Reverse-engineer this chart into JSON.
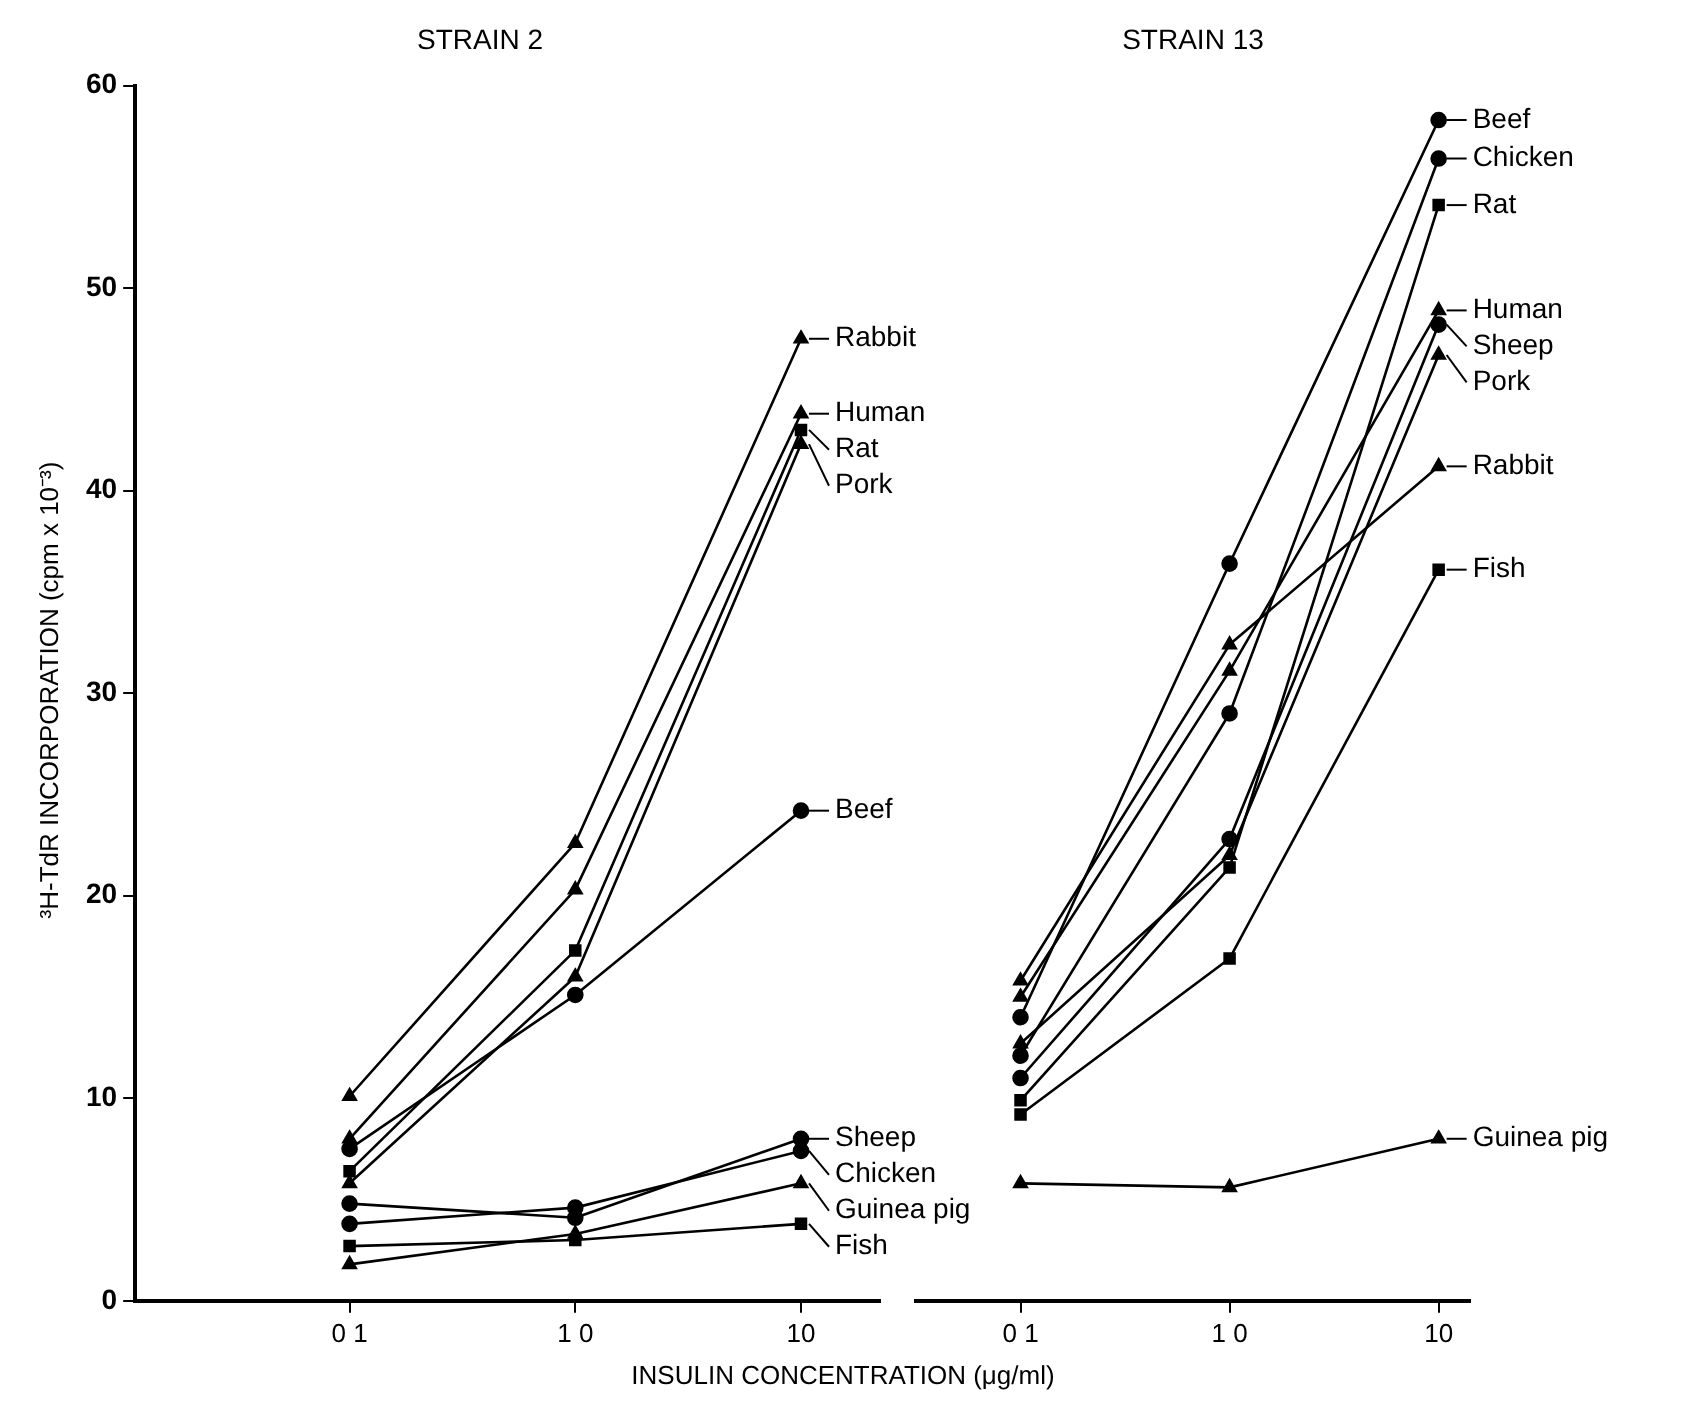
{
  "chart_data": [
    {
      "type": "line",
      "title": "STRAIN 2",
      "xlabel": "INSULIN CONCENTRATION (μg/ml)",
      "ylabel": "³H-TdR INCORPORATION (cpm x 10⁻³)",
      "categories": [
        "0 1",
        "1 0",
        "10"
      ],
      "ylim": [
        0,
        60
      ],
      "yticks": [
        0,
        10,
        20,
        30,
        40,
        50,
        60
      ],
      "grid": false,
      "legend": "right",
      "series": [
        {
          "name": "Rabbit",
          "color": "#000000",
          "marker": "triangle",
          "values": [
            10.1,
            22.6,
            47.5
          ]
        },
        {
          "name": "Human",
          "color": "#000000",
          "marker": "triangle",
          "values": [
            8.0,
            20.3,
            43.8
          ]
        },
        {
          "name": "Rat",
          "color": "#000000",
          "marker": "square",
          "values": [
            6.4,
            17.3,
            43.0
          ]
        },
        {
          "name": "Pork",
          "color": "#000000",
          "marker": "triangle",
          "values": [
            5.8,
            16.0,
            42.3
          ]
        },
        {
          "name": "Beef",
          "color": "#000000",
          "marker": "circle",
          "values": [
            7.5,
            15.1,
            24.2
          ]
        },
        {
          "name": "Sheep",
          "color": "#000000",
          "marker": "circle",
          "values": [
            4.8,
            4.1,
            8.0
          ]
        },
        {
          "name": "Chicken",
          "color": "#000000",
          "marker": "circle",
          "values": [
            3.8,
            4.6,
            7.4
          ]
        },
        {
          "name": "Guinea pig",
          "color": "#000000",
          "marker": "triangle",
          "values": [
            1.8,
            3.3,
            5.8
          ]
        },
        {
          "name": "Fish",
          "color": "#000000",
          "marker": "square",
          "values": [
            2.7,
            3.0,
            3.8
          ]
        }
      ]
    },
    {
      "type": "line",
      "title": "STRAIN 13",
      "categories": [
        "0 1",
        "1 0",
        "10"
      ],
      "ylim": [
        0,
        60
      ],
      "yticks": [
        0,
        10,
        20,
        30,
        40,
        50,
        60
      ],
      "tick_labels": "x",
      "grid": false,
      "legend": "right",
      "series": [
        {
          "name": "Beef",
          "color": "#000000",
          "marker": "circle",
          "values": [
            14.0,
            36.4,
            58.3
          ]
        },
        {
          "name": "Chicken",
          "color": "#000000",
          "marker": "circle",
          "values": [
            12.1,
            29.0,
            56.4
          ]
        },
        {
          "name": "Rat",
          "color": "#000000",
          "marker": "square",
          "values": [
            9.9,
            21.4,
            54.1
          ]
        },
        {
          "name": "Human",
          "color": "#000000",
          "marker": "triangle",
          "values": [
            15.0,
            31.1,
            48.9
          ]
        },
        {
          "name": "Sheep",
          "color": "#000000",
          "marker": "circle",
          "values": [
            11.0,
            22.8,
            48.2
          ]
        },
        {
          "name": "Pork",
          "color": "#000000",
          "marker": "triangle",
          "values": [
            12.7,
            22.0,
            46.7
          ]
        },
        {
          "name": "Rabbit",
          "color": "#000000",
          "marker": "triangle",
          "values": [
            15.8,
            32.4,
            41.2
          ]
        },
        {
          "name": "Fish",
          "color": "#000000",
          "marker": "square",
          "values": [
            9.2,
            16.9,
            36.1
          ]
        },
        {
          "name": "Guinea pig",
          "color": "#000000",
          "marker": "triangle",
          "values": [
            5.8,
            5.6,
            8.0
          ]
        }
      ]
    }
  ]
}
